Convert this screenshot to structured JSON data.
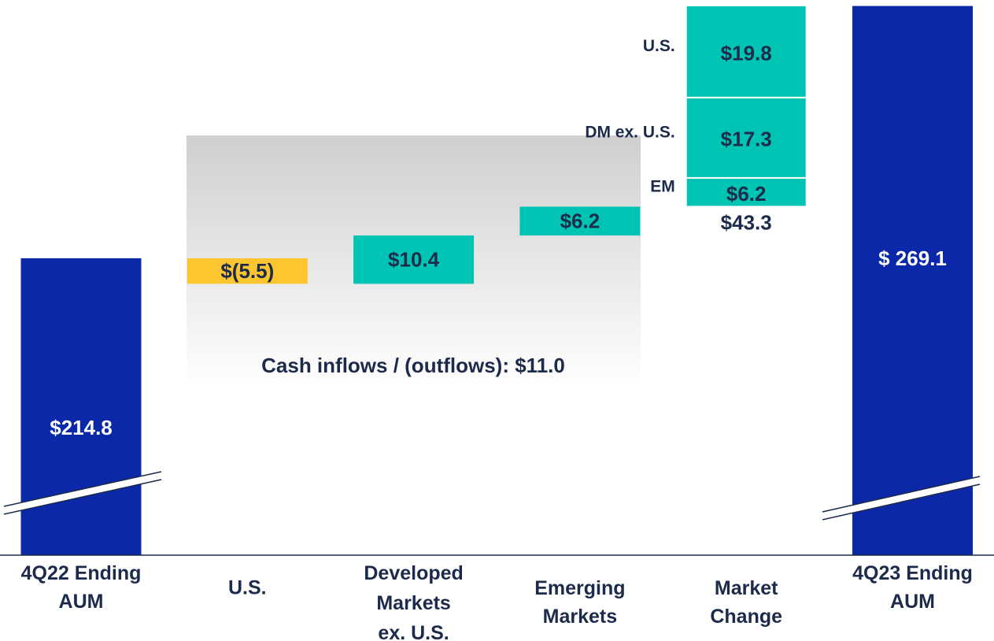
{
  "chart_data": {
    "type": "waterfall",
    "categories": [
      "4Q22 Ending\nAUM",
      "U.S.",
      "Developed\nMarkets\nex. U.S.",
      "Emerging\nMarkets",
      "Market\nChange",
      "4Q23 Ending\nAUM"
    ],
    "kinds": [
      "total",
      "delta",
      "delta",
      "delta",
      "breakdown",
      "total"
    ],
    "values": [
      214.8,
      -5.5,
      10.4,
      6.2,
      43.3,
      269.1
    ],
    "value_labels": [
      "$214.8",
      "$(5.5)",
      "$10.4",
      "$6.2",
      "$43.3",
      "$ 269.1"
    ],
    "market_change_segments": [
      {
        "name": "EM",
        "value": 6.2,
        "value_label": "$6.2"
      },
      {
        "name": "DM ex. U.S.",
        "value": 17.3,
        "value_label": "$17.3"
      },
      {
        "name": "U.S.",
        "value": 19.8,
        "value_label": "$19.8"
      }
    ],
    "colors": {
      "total": "#0a28a8",
      "increase": "#00c4b3",
      "decrease": "#fdc52f"
    },
    "annotation": "Cash inflows / (outflows): $11.0"
  }
}
